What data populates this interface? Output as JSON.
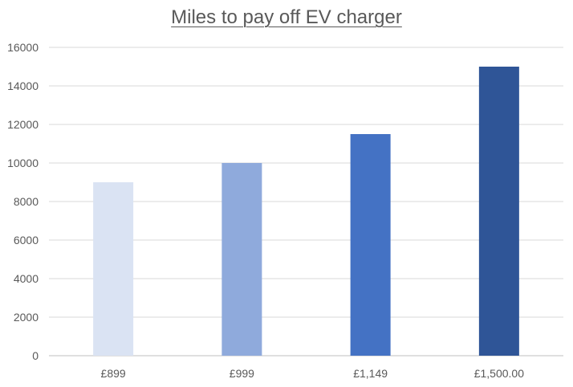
{
  "chart_data": {
    "type": "bar",
    "title": "Miles to pay off EV charger",
    "xlabel": "",
    "ylabel": "",
    "categories": [
      "£899",
      "£999",
      "£1,149",
      "£1,500.00"
    ],
    "values": [
      9000,
      10000,
      11500,
      15000
    ],
    "colors": [
      "#dae3f3",
      "#8faadc",
      "#4472c4",
      "#2f5597"
    ],
    "ylim": [
      0,
      16000
    ],
    "yticks": [
      0,
      2000,
      4000,
      6000,
      8000,
      10000,
      12000,
      14000,
      16000
    ],
    "grid": true,
    "legend": "none"
  }
}
